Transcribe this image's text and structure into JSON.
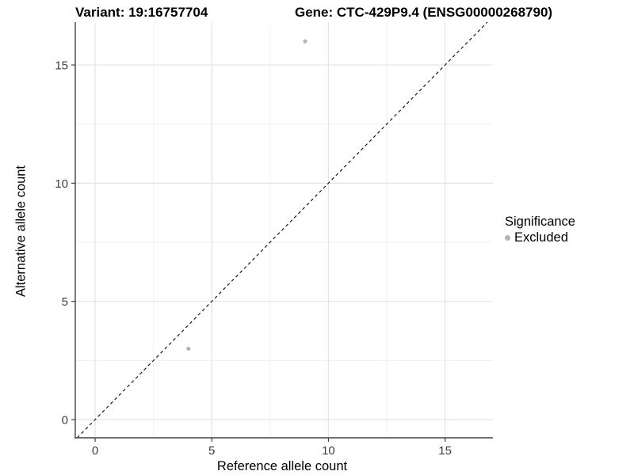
{
  "chart_data": {
    "type": "scatter",
    "title_left": "Variant: 19:16757704",
    "title_right": "Gene: CTC-429P9.4 (ENSG00000268790)",
    "xlabel": "Reference allele count",
    "ylabel": "Alternative allele count",
    "xlim": [
      -0.85,
      17.05
    ],
    "ylim": [
      -0.77,
      16.81
    ],
    "x_ticks": [
      0,
      5,
      10,
      15
    ],
    "y_ticks": [
      0,
      5,
      10,
      15
    ],
    "x_minor_ticks": [
      2.5,
      7.5,
      12.5
    ],
    "y_minor_ticks": [
      2.5,
      7.5,
      12.5
    ],
    "grid": true,
    "identity_line": {
      "style": "dashed",
      "equation": "y = x"
    },
    "series": [
      {
        "name": "Excluded",
        "color": "#b5b5b5",
        "points": [
          {
            "x": 4,
            "y": 3
          },
          {
            "x": 9,
            "y": 16
          }
        ]
      }
    ],
    "legend": {
      "title": "Significance",
      "position": "right",
      "items": [
        {
          "label": "Excluded",
          "color": "#b5b5b5"
        }
      ]
    },
    "colors": {
      "background": "#ffffff",
      "grid_major": "#e4e4e4",
      "grid_minor": "#f1f1f1",
      "axis_line": "#424242",
      "tick_mark": "#424242",
      "tick_label": "#3d3d3d",
      "identity_line": "#1a1a1a",
      "point": "#b5b5b5"
    }
  }
}
